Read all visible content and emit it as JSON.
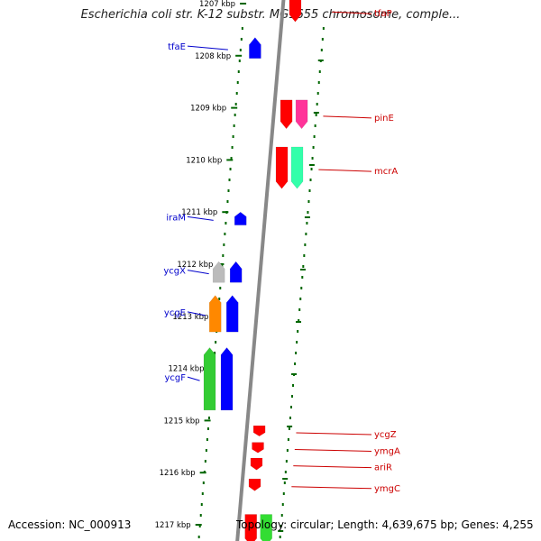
{
  "viewer": {
    "title": "Escherichia coli str. K-12 substr. MG1655 chromosome, comple...",
    "accession": "Accession: NC_000913",
    "topology": "Topology: circular; Length: 4,639,675 bp; Genes: 4,255",
    "ticks": [
      {
        "label": "1207 kbp",
        "kbp": 1207
      },
      {
        "label": "1208 kbp",
        "kbp": 1208
      },
      {
        "label": "1209 kbp",
        "kbp": 1209
      },
      {
        "label": "1210 kbp",
        "kbp": 1210
      },
      {
        "label": "1211 kbp",
        "kbp": 1211
      },
      {
        "label": "1212 kbp",
        "kbp": 1212
      },
      {
        "label": "1213 kbp",
        "kbp": 1213
      },
      {
        "label": "1214 kbp",
        "kbp": 1214
      },
      {
        "label": "1215 kbp",
        "kbp": 1215
      },
      {
        "label": "1216 kbp",
        "kbp": 1216
      },
      {
        "label": "1217 kbp",
        "kbp": 1217
      }
    ],
    "genes_reverse": [
      {
        "name": "tfaE",
        "kbp_start": 1207.65,
        "kbp_end": 1208.05,
        "color": "#0000ff"
      },
      {
        "name": "iraM",
        "kbp_start": 1211.0,
        "kbp_end": 1211.25,
        "color": "#0000ff"
      },
      {
        "name": "ycgX",
        "kbp_start": 1211.95,
        "kbp_end": 1212.35,
        "color": "#0000ff"
      },
      {
        "name": "ycgE",
        "kbp_start": 1212.6,
        "kbp_end": 1213.3,
        "color": "#0000ff"
      },
      {
        "name": "ycgF",
        "kbp_start": 1213.6,
        "kbp_end": 1214.8,
        "color": "#0000ff"
      }
    ],
    "genes_forward": [
      {
        "name": "tfaP",
        "kbp_start": 1206.9,
        "kbp_end": 1207.35,
        "color": "#ff0000"
      },
      {
        "name": "pinE",
        "kbp_start": 1208.85,
        "kbp_end": 1209.4,
        "color": "#ff0000"
      },
      {
        "name": "mcrA",
        "kbp_start": 1209.75,
        "kbp_end": 1210.55,
        "color": "#ff0000"
      },
      {
        "name": "ycgZ",
        "kbp_start": 1215.1,
        "kbp_end": 1215.3,
        "color": "#ff0000"
      },
      {
        "name": "ymgA",
        "kbp_start": 1215.42,
        "kbp_end": 1215.62,
        "color": "#ff0000"
      },
      {
        "name": "ariR",
        "kbp_start": 1215.72,
        "kbp_end": 1215.95,
        "color": "#ff0000"
      },
      {
        "name": "ymgC",
        "kbp_start": 1216.12,
        "kbp_end": 1216.35,
        "color": "#ff0000"
      },
      {
        "name": "",
        "kbp_start": 1216.8,
        "kbp_end": 1217.4,
        "color": "#ff0000"
      }
    ],
    "features_reverse": [
      {
        "kbp_start": 1211.95,
        "kbp_end": 1212.35,
        "color": "#bbbbbb"
      },
      {
        "kbp_start": 1212.6,
        "kbp_end": 1213.3,
        "color": "#ff8800"
      },
      {
        "kbp_start": 1213.6,
        "kbp_end": 1214.8,
        "color": "#33cc33"
      }
    ],
    "features_forward": [
      {
        "kbp_start": 1208.85,
        "kbp_end": 1209.4,
        "color": "#ff3399"
      },
      {
        "kbp_start": 1209.75,
        "kbp_end": 1210.55,
        "color": "#33ffaa"
      },
      {
        "kbp_start": 1216.8,
        "kbp_end": 1217.4,
        "color": "#33dd33"
      }
    ],
    "colors": {
      "axis": "#888888",
      "tick": "#006600",
      "reverse_label": "#0000cc",
      "forward_label": "#cc0000"
    }
  }
}
